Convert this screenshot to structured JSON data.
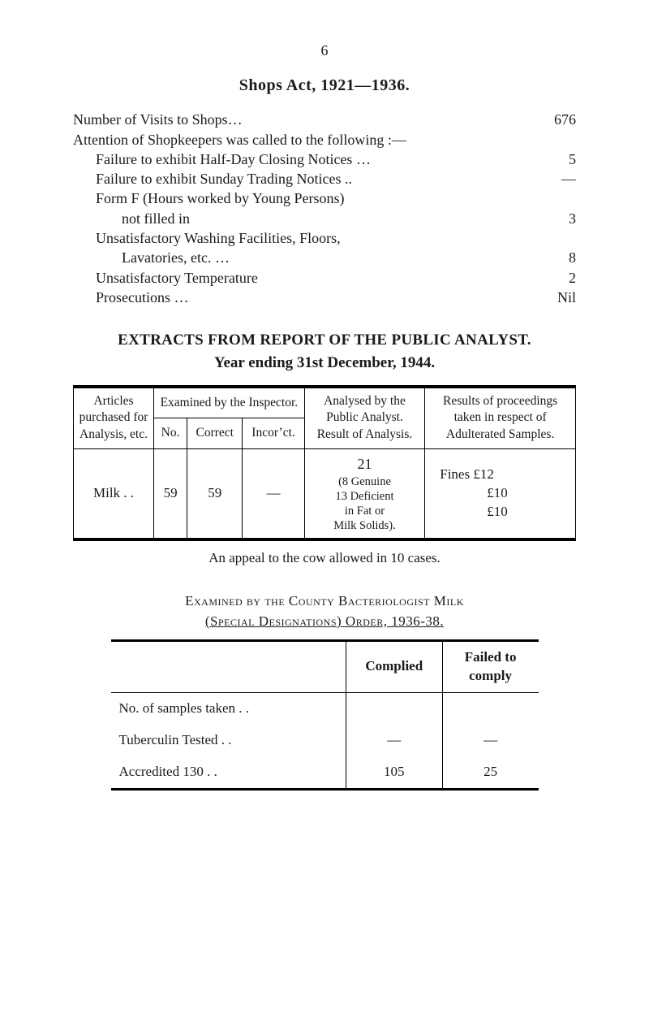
{
  "page_number": "6",
  "section1": {
    "title": "Shops Act, 1921—1936.",
    "lines": [
      {
        "label": "Number of Visits to Shops…",
        "value": "676",
        "indent": 0
      },
      {
        "label": "Attention of Shopkeepers was called to the following :—",
        "value": "",
        "indent": 0
      },
      {
        "label": "Failure to exhibit Half-Day Closing Notices …",
        "value": "5",
        "indent": 1
      },
      {
        "label": "Failure to exhibit Sunday Trading Notices   ..",
        "value": "—",
        "indent": 1
      },
      {
        "label": "Form F (Hours worked by Young Persons)",
        "value": "",
        "indent": 1
      },
      {
        "label": "not filled in",
        "value": "3",
        "indent": 2
      },
      {
        "label": "Unsatisfactory Washing Facilities, Floors,",
        "value": "",
        "indent": 1
      },
      {
        "label": "Lavatories, etc.   …",
        "value": "8",
        "indent": 2
      },
      {
        "label": "Unsatisfactory Temperature",
        "value": "2",
        "indent": 1
      },
      {
        "label": "Prosecutions …",
        "value": "Nil",
        "indent": 1
      }
    ]
  },
  "section2": {
    "title": "EXTRACTS FROM REPORT OF THE PUBLIC ANALYST.",
    "subtitle": "Year ending 31st December, 1944.",
    "headers": {
      "col1": "Articles purchased for Analysis, etc.",
      "col2": "Examined by the Inspector.",
      "col2a": "No.",
      "col2b": "Correct",
      "col2c": "Incor’ct.",
      "col3": "Analysed by the Public Analyst. Result of Analysis.",
      "col4": "Results of proceedings taken in respect of Adulterated Samples."
    },
    "row": {
      "item": "Milk   . .",
      "no": "59",
      "correct": "59",
      "incorrect": "—",
      "analysed": "21",
      "analysed_detail": "(8 Genuine\n13 Deficient\nin Fat or\nMilk Solids).",
      "fines_line1": "Fines  £12",
      "fines_line2": "£10",
      "fines_line3": "£10"
    },
    "caption": "An appeal to the cow allowed in 10 cases."
  },
  "section3": {
    "title": "Examined by the County Bacteriologist Milk",
    "subtitle": "(Special Designations) Order, 1936-38.",
    "headers": {
      "complied": "Complied",
      "failed": "Failed to comply"
    },
    "rows": [
      {
        "label": "No. of samples taken",
        "complied": "",
        "failed": ""
      },
      {
        "label": "Tuberculin Tested",
        "complied": "—",
        "failed": "—"
      },
      {
        "label": "Accredited 130",
        "complied": "105",
        "failed": "25"
      }
    ]
  }
}
